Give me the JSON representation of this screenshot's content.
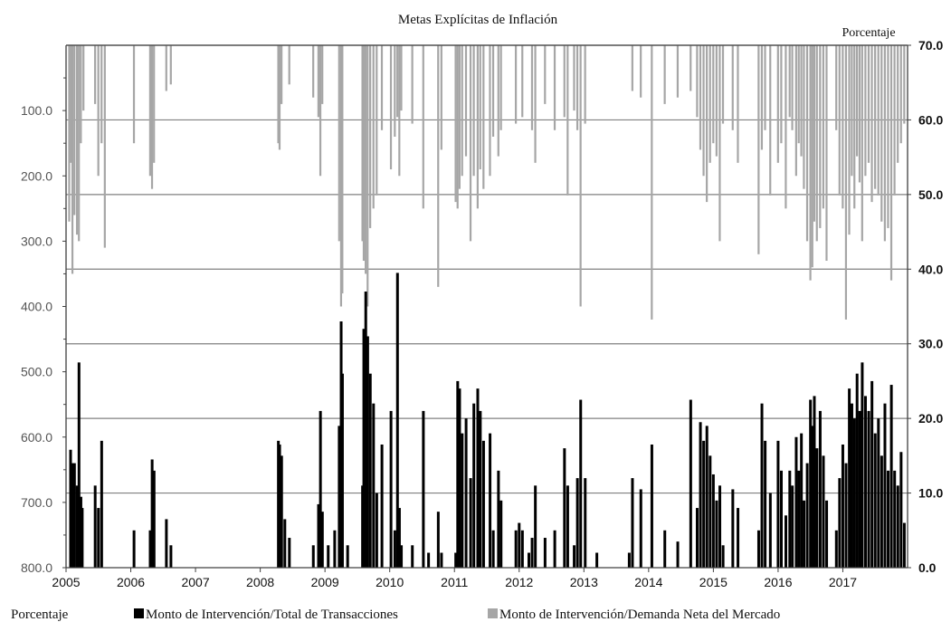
{
  "chart_data": {
    "type": "bar",
    "title": "Metas Explícitas de Inflación",
    "right_axis_unit": "Porcentaje",
    "legend_label": "Porcentaje",
    "left_axis": {
      "ylim": [
        800,
        0
      ],
      "inverted": true,
      "ticks": [
        "100.0",
        "200.0",
        "300.0",
        "400.0",
        "500.0",
        "600.0",
        "700.0",
        "800.0"
      ],
      "tick_values": [
        100,
        200,
        300,
        400,
        500,
        600,
        700,
        800
      ]
    },
    "right_axis": {
      "ylim": [
        0,
        70
      ],
      "ticks": [
        "0.0",
        "10.0",
        "20.0",
        "30.0",
        "40.0",
        "50.0",
        "60.0",
        "70.0"
      ],
      "tick_values": [
        0,
        10,
        20,
        30,
        40,
        50,
        60,
        70
      ],
      "gridlines": true
    },
    "x_axis": {
      "labels": [
        "2005",
        "2006",
        "2007",
        "2008",
        "2009",
        "2010",
        "2011",
        "2012",
        "2013",
        "2014",
        "2015",
        "2016",
        "2017"
      ],
      "year_start": 2005,
      "year_end": 2018
    },
    "colors": {
      "series1": "#000000",
      "series2": "#a6a6a6",
      "grid": "#808080"
    },
    "series": [
      {
        "name": "Monto de Intervención/Total de Transacciones",
        "axis": "right",
        "color": "#000000",
        "points": [
          [
            2005.07,
            15.8
          ],
          [
            2005.1,
            14
          ],
          [
            2005.13,
            14
          ],
          [
            2005.17,
            11
          ],
          [
            2005.2,
            27.5
          ],
          [
            2005.23,
            9.5
          ],
          [
            2005.25,
            8
          ],
          [
            2005.45,
            11
          ],
          [
            2005.5,
            8
          ],
          [
            2005.55,
            17
          ],
          [
            2006.05,
            5
          ],
          [
            2006.3,
            5
          ],
          [
            2006.33,
            14.5
          ],
          [
            2006.36,
            13
          ],
          [
            2006.55,
            6.5
          ],
          [
            2006.62,
            3
          ],
          [
            2008.28,
            17
          ],
          [
            2008.3,
            16.5
          ],
          [
            2008.33,
            15
          ],
          [
            2008.38,
            6.5
          ],
          [
            2008.45,
            4
          ],
          [
            2008.82,
            3
          ],
          [
            2008.9,
            8.5
          ],
          [
            2008.93,
            21
          ],
          [
            2008.96,
            7.5
          ],
          [
            2009.05,
            3
          ],
          [
            2009.15,
            5
          ],
          [
            2009.22,
            19
          ],
          [
            2009.25,
            33
          ],
          [
            2009.27,
            26
          ],
          [
            2009.35,
            3
          ],
          [
            2009.58,
            11
          ],
          [
            2009.6,
            32
          ],
          [
            2009.63,
            37
          ],
          [
            2009.66,
            31
          ],
          [
            2009.7,
            26
          ],
          [
            2009.75,
            22
          ],
          [
            2009.8,
            10
          ],
          [
            2009.88,
            16.5
          ],
          [
            2010.02,
            21
          ],
          [
            2010.08,
            5
          ],
          [
            2010.12,
            39.5
          ],
          [
            2010.15,
            8
          ],
          [
            2010.18,
            3
          ],
          [
            2010.35,
            3
          ],
          [
            2010.52,
            21
          ],
          [
            2010.6,
            2
          ],
          [
            2010.75,
            7.5
          ],
          [
            2010.8,
            2
          ],
          [
            2011.02,
            2
          ],
          [
            2011.05,
            25
          ],
          [
            2011.08,
            24
          ],
          [
            2011.12,
            18
          ],
          [
            2011.18,
            20
          ],
          [
            2011.25,
            12
          ],
          [
            2011.3,
            22
          ],
          [
            2011.36,
            24
          ],
          [
            2011.4,
            21
          ],
          [
            2011.45,
            17
          ],
          [
            2011.55,
            18
          ],
          [
            2011.6,
            5
          ],
          [
            2011.68,
            13
          ],
          [
            2011.72,
            9
          ],
          [
            2011.95,
            5
          ],
          [
            2012.0,
            6
          ],
          [
            2012.05,
            5
          ],
          [
            2012.15,
            2
          ],
          [
            2012.2,
            4
          ],
          [
            2012.25,
            11
          ],
          [
            2012.4,
            4
          ],
          [
            2012.55,
            5
          ],
          [
            2012.7,
            16
          ],
          [
            2012.75,
            11
          ],
          [
            2012.85,
            3
          ],
          [
            2012.9,
            12
          ],
          [
            2012.95,
            22.5
          ],
          [
            2013.02,
            12
          ],
          [
            2013.2,
            2
          ],
          [
            2013.7,
            2
          ],
          [
            2013.75,
            12
          ],
          [
            2013.88,
            10.5
          ],
          [
            2014.05,
            16.5
          ],
          [
            2014.25,
            5
          ],
          [
            2014.45,
            3.5
          ],
          [
            2014.65,
            22.5
          ],
          [
            2014.75,
            8
          ],
          [
            2014.8,
            19.5
          ],
          [
            2014.85,
            17
          ],
          [
            2014.9,
            19
          ],
          [
            2014.95,
            15
          ],
          [
            2015.0,
            12.5
          ],
          [
            2015.05,
            9
          ],
          [
            2015.1,
            11
          ],
          [
            2015.15,
            3
          ],
          [
            2015.3,
            10.5
          ],
          [
            2015.38,
            8
          ],
          [
            2015.7,
            5
          ],
          [
            2015.75,
            22
          ],
          [
            2015.8,
            17
          ],
          [
            2015.88,
            10
          ],
          [
            2016.0,
            17
          ],
          [
            2016.05,
            13
          ],
          [
            2016.12,
            7
          ],
          [
            2016.18,
            13
          ],
          [
            2016.22,
            11
          ],
          [
            2016.28,
            17.5
          ],
          [
            2016.32,
            13
          ],
          [
            2016.36,
            18
          ],
          [
            2016.4,
            9
          ],
          [
            2016.45,
            14
          ],
          [
            2016.5,
            22.5
          ],
          [
            2016.53,
            19
          ],
          [
            2016.56,
            23
          ],
          [
            2016.6,
            16
          ],
          [
            2016.65,
            21
          ],
          [
            2016.7,
            15
          ],
          [
            2016.75,
            9
          ],
          [
            2016.9,
            5
          ],
          [
            2016.95,
            12
          ],
          [
            2017.0,
            16.5
          ],
          [
            2017.05,
            14
          ],
          [
            2017.1,
            24
          ],
          [
            2017.14,
            22
          ],
          [
            2017.18,
            20
          ],
          [
            2017.22,
            26
          ],
          [
            2017.26,
            21
          ],
          [
            2017.3,
            27.5
          ],
          [
            2017.35,
            23
          ],
          [
            2017.4,
            21
          ],
          [
            2017.45,
            25
          ],
          [
            2017.5,
            18
          ],
          [
            2017.55,
            20
          ],
          [
            2017.6,
            15
          ],
          [
            2017.65,
            22
          ],
          [
            2017.7,
            13
          ],
          [
            2017.75,
            24.5
          ],
          [
            2017.8,
            13
          ],
          [
            2017.85,
            11
          ],
          [
            2017.9,
            15.5
          ],
          [
            2017.95,
            6
          ]
        ]
      },
      {
        "name": "Monto de Intervención/Demanda Neta del Mercado",
        "axis": "left",
        "color": "#a6a6a6",
        "points": [
          [
            2005.05,
            270
          ],
          [
            2005.08,
            180
          ],
          [
            2005.1,
            350
          ],
          [
            2005.13,
            260
          ],
          [
            2005.17,
            290
          ],
          [
            2005.2,
            300
          ],
          [
            2005.23,
            150
          ],
          [
            2005.27,
            100
          ],
          [
            2005.45,
            90
          ],
          [
            2005.5,
            200
          ],
          [
            2005.55,
            150
          ],
          [
            2005.6,
            310
          ],
          [
            2006.05,
            150
          ],
          [
            2006.3,
            200
          ],
          [
            2006.33,
            220
          ],
          [
            2006.36,
            180
          ],
          [
            2006.55,
            70
          ],
          [
            2006.62,
            60
          ],
          [
            2008.28,
            150
          ],
          [
            2008.3,
            160
          ],
          [
            2008.33,
            90
          ],
          [
            2008.45,
            60
          ],
          [
            2008.82,
            80
          ],
          [
            2008.9,
            110
          ],
          [
            2008.93,
            200
          ],
          [
            2008.96,
            90
          ],
          [
            2009.22,
            300
          ],
          [
            2009.25,
            400
          ],
          [
            2009.27,
            380
          ],
          [
            2009.58,
            300
          ],
          [
            2009.6,
            330
          ],
          [
            2009.63,
            350
          ],
          [
            2009.66,
            400
          ],
          [
            2009.7,
            280
          ],
          [
            2009.75,
            250
          ],
          [
            2009.8,
            230
          ],
          [
            2009.88,
            130
          ],
          [
            2010.02,
            190
          ],
          [
            2010.08,
            140
          ],
          [
            2010.12,
            110
          ],
          [
            2010.15,
            200
          ],
          [
            2010.18,
            100
          ],
          [
            2010.35,
            120
          ],
          [
            2010.52,
            250
          ],
          [
            2010.75,
            370
          ],
          [
            2010.8,
            160
          ],
          [
            2011.02,
            240
          ],
          [
            2011.05,
            250
          ],
          [
            2011.08,
            220
          ],
          [
            2011.12,
            200
          ],
          [
            2011.18,
            170
          ],
          [
            2011.25,
            300
          ],
          [
            2011.3,
            200
          ],
          [
            2011.36,
            250
          ],
          [
            2011.4,
            190
          ],
          [
            2011.45,
            220
          ],
          [
            2011.55,
            200
          ],
          [
            2011.6,
            140
          ],
          [
            2011.68,
            170
          ],
          [
            2011.72,
            130
          ],
          [
            2011.95,
            120
          ],
          [
            2012.05,
            110
          ],
          [
            2012.2,
            130
          ],
          [
            2012.25,
            180
          ],
          [
            2012.4,
            90
          ],
          [
            2012.55,
            130
          ],
          [
            2012.7,
            110
          ],
          [
            2012.75,
            230
          ],
          [
            2012.85,
            100
          ],
          [
            2012.9,
            130
          ],
          [
            2012.95,
            400
          ],
          [
            2013.02,
            120
          ],
          [
            2013.75,
            70
          ],
          [
            2013.88,
            80
          ],
          [
            2014.05,
            420
          ],
          [
            2014.25,
            90
          ],
          [
            2014.45,
            80
          ],
          [
            2014.65,
            70
          ],
          [
            2014.75,
            110
          ],
          [
            2014.8,
            160
          ],
          [
            2014.85,
            200
          ],
          [
            2014.9,
            240
          ],
          [
            2014.95,
            180
          ],
          [
            2015.0,
            150
          ],
          [
            2015.05,
            170
          ],
          [
            2015.1,
            300
          ],
          [
            2015.15,
            120
          ],
          [
            2015.3,
            130
          ],
          [
            2015.38,
            180
          ],
          [
            2015.7,
            320
          ],
          [
            2015.75,
            160
          ],
          [
            2015.8,
            130
          ],
          [
            2015.88,
            230
          ],
          [
            2016.0,
            180
          ],
          [
            2016.05,
            150
          ],
          [
            2016.12,
            250
          ],
          [
            2016.18,
            110
          ],
          [
            2016.22,
            130
          ],
          [
            2016.28,
            200
          ],
          [
            2016.32,
            150
          ],
          [
            2016.36,
            170
          ],
          [
            2016.4,
            220
          ],
          [
            2016.45,
            300
          ],
          [
            2016.5,
            360
          ],
          [
            2016.53,
            340
          ],
          [
            2016.56,
            270
          ],
          [
            2016.6,
            300
          ],
          [
            2016.65,
            280
          ],
          [
            2016.7,
            250
          ],
          [
            2016.75,
            330
          ],
          [
            2016.9,
            130
          ],
          [
            2016.95,
            230
          ],
          [
            2017.0,
            250
          ],
          [
            2017.05,
            420
          ],
          [
            2017.1,
            290
          ],
          [
            2017.14,
            200
          ],
          [
            2017.18,
            250
          ],
          [
            2017.22,
            170
          ],
          [
            2017.26,
            210
          ],
          [
            2017.3,
            300
          ],
          [
            2017.35,
            200
          ],
          [
            2017.4,
            180
          ],
          [
            2017.45,
            240
          ],
          [
            2017.5,
            220
          ],
          [
            2017.55,
            230
          ],
          [
            2017.6,
            270
          ],
          [
            2017.65,
            300
          ],
          [
            2017.7,
            280
          ],
          [
            2017.75,
            360
          ],
          [
            2017.8,
            230
          ],
          [
            2017.85,
            180
          ],
          [
            2017.9,
            150
          ],
          [
            2017.95,
            120
          ]
        ]
      }
    ]
  }
}
